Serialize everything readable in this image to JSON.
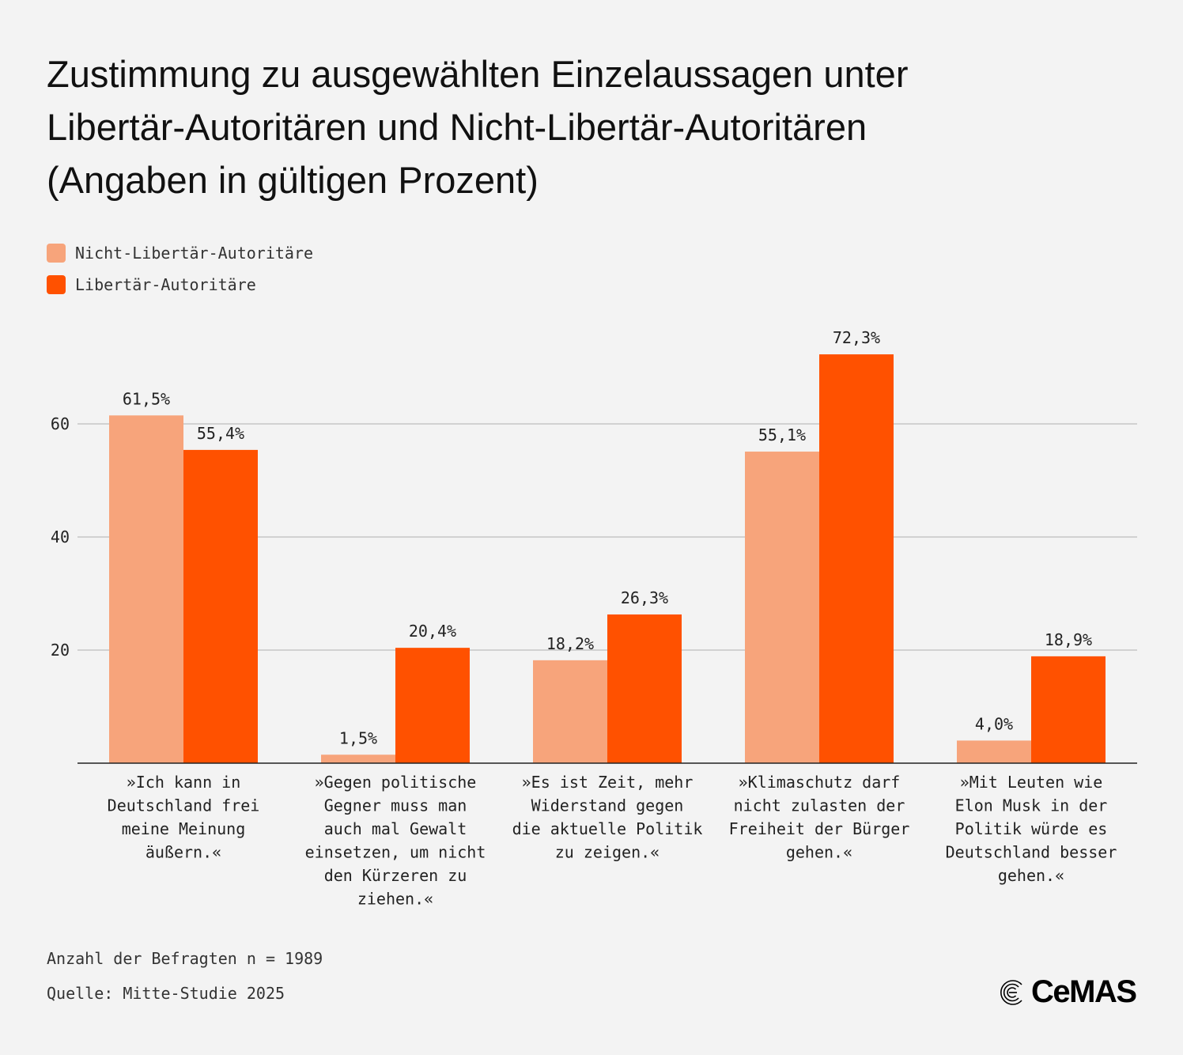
{
  "title_lines": [
    "Zustimmung zu ausgewählten Einzelaussagen unter",
    "Libertär-Autoritären und Nicht-Libertär-Autoritären",
    "(Angaben in gültigen Prozent)"
  ],
  "footer": {
    "n": "Anzahl der Befragten n = 1989",
    "source": "Quelle: Mitte-Studie 2025"
  },
  "logo": {
    "text": "CeMAS"
  },
  "chart_data": {
    "type": "bar",
    "title": "Zustimmung zu ausgewählten Einzelaussagen unter Libertär-Autoritären und Nicht-Libertär-Autoritären (Angaben in gültigen Prozent)",
    "categories": [
      [
        "»Ich kann in",
        "Deutschland frei",
        "meine Meinung",
        "äußern.«"
      ],
      [
        "»Gegen politische",
        "Gegner muss man",
        "auch mal Gewalt",
        "einsetzen, um nicht",
        "den Kürzeren zu",
        "ziehen.«"
      ],
      [
        "»Es ist Zeit, mehr",
        "Widerstand gegen",
        "die aktuelle Politik",
        "zu zeigen.«"
      ],
      [
        "»Klimaschutz darf",
        "nicht zulasten der",
        "Freiheit der Bürger",
        "gehen.«"
      ],
      [
        "»Mit Leuten wie",
        "Elon Musk in der",
        "Politik würde es",
        "Deutschland besser",
        "gehen.«"
      ]
    ],
    "series": [
      {
        "name": "Nicht-Libertär-Autoritäre",
        "color": "#f7a47b",
        "values": [
          61.5,
          1.5,
          18.2,
          55.1,
          4.0
        ],
        "labels": [
          "61,5%",
          "1,5%",
          "18,2%",
          "55,1%",
          "4,0%"
        ]
      },
      {
        "name": "Libertär-Autoritäre",
        "color": "#ff5100",
        "values": [
          55.4,
          20.4,
          26.3,
          72.3,
          18.9
        ],
        "labels": [
          "55,4%",
          "20,4%",
          "26,3%",
          "72,3%",
          "18,9%"
        ]
      }
    ],
    "yticks": [
      20,
      40,
      60
    ],
    "ylim": [
      0,
      80
    ],
    "grid": true,
    "legend_position": "top-left"
  }
}
